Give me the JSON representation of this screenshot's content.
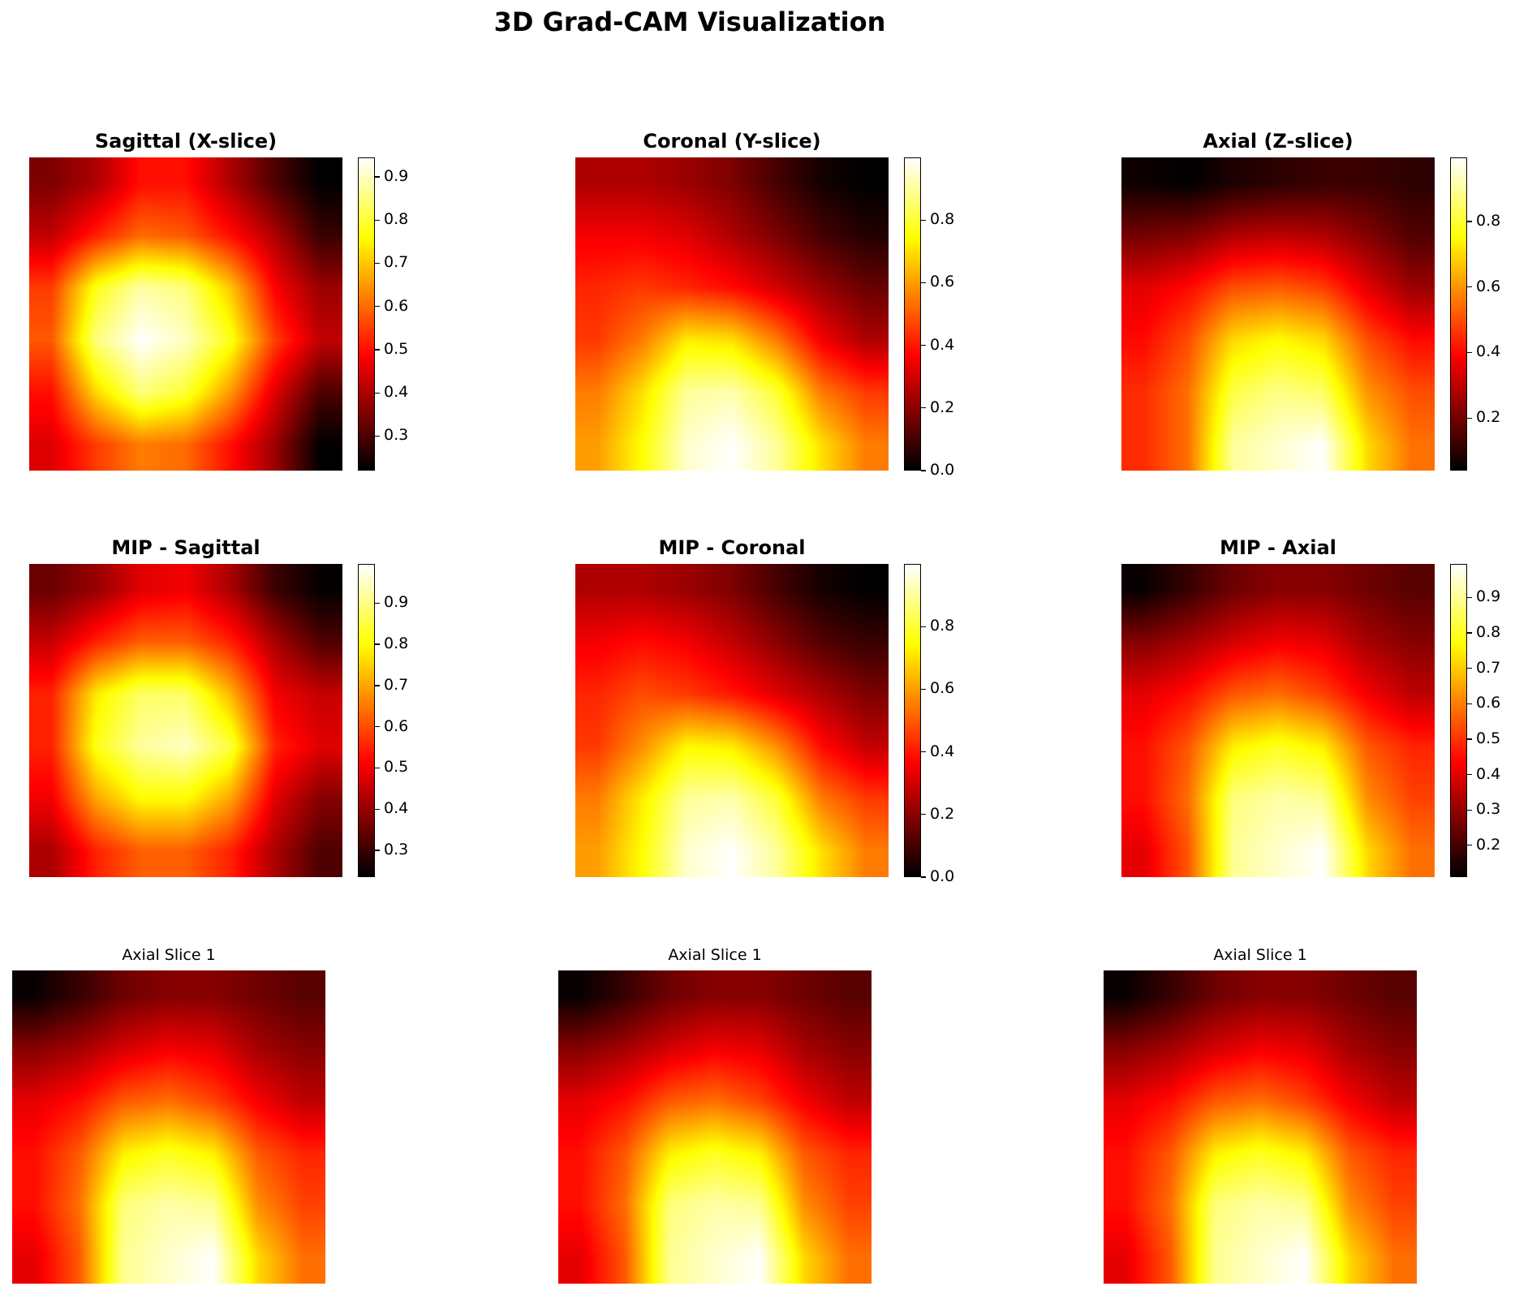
{
  "figure": {
    "title": "3D Grad-CAM Visualization",
    "colormap": "hot"
  },
  "chart_data": [
    {
      "type": "heatmap",
      "title": "Sagittal (X-slice)",
      "title_weight": "bold",
      "colorbar": true,
      "vmin": 0.22,
      "vmax": 0.945,
      "ticks": [
        0.3,
        0.4,
        0.5,
        0.6,
        0.7,
        0.8,
        0.9
      ],
      "values": [
        [
          0.35,
          0.4,
          0.5,
          0.5,
          0.4,
          0.3,
          0.22
        ],
        [
          0.42,
          0.52,
          0.6,
          0.58,
          0.5,
          0.4,
          0.28
        ],
        [
          0.55,
          0.78,
          0.88,
          0.85,
          0.7,
          0.48,
          0.38
        ],
        [
          0.58,
          0.85,
          0.945,
          0.9,
          0.78,
          0.55,
          0.42
        ],
        [
          0.5,
          0.72,
          0.85,
          0.8,
          0.65,
          0.45,
          0.3
        ],
        [
          0.45,
          0.55,
          0.62,
          0.6,
          0.5,
          0.38,
          0.22
        ]
      ]
    },
    {
      "type": "heatmap",
      "title": "Coronal (Y-slice)",
      "title_weight": "bold",
      "colorbar": true,
      "vmin": 0.0,
      "vmax": 1.0,
      "ticks": [
        0.0,
        0.2,
        0.4,
        0.6,
        0.8
      ],
      "values": [
        [
          0.25,
          0.25,
          0.22,
          0.18,
          0.1,
          0.03,
          0.0
        ],
        [
          0.35,
          0.35,
          0.32,
          0.25,
          0.18,
          0.1,
          0.05
        ],
        [
          0.42,
          0.45,
          0.42,
          0.38,
          0.3,
          0.22,
          0.15
        ],
        [
          0.45,
          0.55,
          0.72,
          0.7,
          0.55,
          0.35,
          0.25
        ],
        [
          0.55,
          0.7,
          0.9,
          0.92,
          0.8,
          0.55,
          0.45
        ],
        [
          0.6,
          0.75,
          0.95,
          1.0,
          0.9,
          0.7,
          0.55
        ]
      ]
    },
    {
      "type": "heatmap",
      "title": "Axial (Z-slice)",
      "title_weight": "bold",
      "colorbar": true,
      "vmin": 0.04,
      "vmax": 0.995,
      "ticks": [
        0.2,
        0.4,
        0.6,
        0.8
      ],
      "values": [
        [
          0.06,
          0.04,
          0.08,
          0.1,
          0.12,
          0.12,
          0.1
        ],
        [
          0.2,
          0.22,
          0.28,
          0.3,
          0.28,
          0.22,
          0.15
        ],
        [
          0.35,
          0.4,
          0.5,
          0.52,
          0.48,
          0.35,
          0.25
        ],
        [
          0.4,
          0.5,
          0.7,
          0.75,
          0.7,
          0.5,
          0.4
        ],
        [
          0.45,
          0.55,
          0.82,
          0.88,
          0.85,
          0.6,
          0.5
        ],
        [
          0.45,
          0.55,
          0.9,
          0.95,
          0.995,
          0.7,
          0.55
        ]
      ]
    },
    {
      "type": "heatmap",
      "title": "MIP - Sagittal",
      "title_weight": "bold",
      "colorbar": true,
      "vmin": 0.235,
      "vmax": 0.995,
      "ticks": [
        0.3,
        0.4,
        0.5,
        0.6,
        0.7,
        0.8,
        0.9
      ],
      "values": [
        [
          0.35,
          0.4,
          0.48,
          0.5,
          0.42,
          0.3,
          0.24
        ],
        [
          0.45,
          0.55,
          0.62,
          0.62,
          0.55,
          0.42,
          0.32
        ],
        [
          0.55,
          0.78,
          0.88,
          0.88,
          0.72,
          0.5,
          0.45
        ],
        [
          0.55,
          0.82,
          0.92,
          0.95,
          0.85,
          0.55,
          0.48
        ],
        [
          0.5,
          0.7,
          0.8,
          0.8,
          0.7,
          0.48,
          0.38
        ],
        [
          0.42,
          0.55,
          0.62,
          0.62,
          0.55,
          0.42,
          0.32
        ]
      ]
    },
    {
      "type": "heatmap",
      "title": "MIP - Coronal",
      "title_weight": "bold",
      "colorbar": true,
      "vmin": 0.0,
      "vmax": 1.0,
      "ticks": [
        0.0,
        0.2,
        0.4,
        0.6,
        0.8
      ],
      "values": [
        [
          0.25,
          0.25,
          0.22,
          0.18,
          0.1,
          0.03,
          0.0
        ],
        [
          0.35,
          0.38,
          0.35,
          0.28,
          0.2,
          0.12,
          0.08
        ],
        [
          0.42,
          0.48,
          0.45,
          0.4,
          0.32,
          0.25,
          0.18
        ],
        [
          0.45,
          0.58,
          0.74,
          0.72,
          0.58,
          0.38,
          0.28
        ],
        [
          0.55,
          0.72,
          0.9,
          0.92,
          0.8,
          0.55,
          0.45
        ],
        [
          0.6,
          0.75,
          0.95,
          1.0,
          0.9,
          0.7,
          0.55
        ]
      ]
    },
    {
      "type": "heatmap",
      "title": "MIP - Axial",
      "title_weight": "bold",
      "colorbar": true,
      "vmin": 0.11,
      "vmax": 0.995,
      "ticks": [
        0.2,
        0.3,
        0.4,
        0.5,
        0.6,
        0.7,
        0.8,
        0.9
      ],
      "values": [
        [
          0.12,
          0.18,
          0.25,
          0.28,
          0.28,
          0.25,
          0.22
        ],
        [
          0.28,
          0.32,
          0.38,
          0.42,
          0.4,
          0.32,
          0.28
        ],
        [
          0.4,
          0.45,
          0.55,
          0.58,
          0.52,
          0.42,
          0.35
        ],
        [
          0.45,
          0.55,
          0.75,
          0.8,
          0.75,
          0.55,
          0.48
        ],
        [
          0.45,
          0.58,
          0.88,
          0.92,
          0.9,
          0.62,
          0.52
        ],
        [
          0.4,
          0.55,
          0.9,
          0.95,
          0.995,
          0.72,
          0.58
        ]
      ]
    },
    {
      "type": "heatmap",
      "title": "Axial Slice 1",
      "title_weight": "normal",
      "colorbar": false,
      "vmin": 0.11,
      "vmax": 0.995,
      "values": [
        [
          0.12,
          0.18,
          0.25,
          0.28,
          0.28,
          0.25,
          0.22
        ],
        [
          0.28,
          0.32,
          0.38,
          0.42,
          0.4,
          0.32,
          0.28
        ],
        [
          0.4,
          0.45,
          0.55,
          0.58,
          0.52,
          0.42,
          0.35
        ],
        [
          0.45,
          0.55,
          0.75,
          0.8,
          0.75,
          0.55,
          0.48
        ],
        [
          0.45,
          0.58,
          0.88,
          0.92,
          0.9,
          0.62,
          0.52
        ],
        [
          0.4,
          0.55,
          0.9,
          0.95,
          0.995,
          0.72,
          0.58
        ]
      ]
    },
    {
      "type": "heatmap",
      "title": "Axial Slice 1",
      "title_weight": "normal",
      "colorbar": false,
      "vmin": 0.11,
      "vmax": 0.995,
      "values": [
        [
          0.12,
          0.18,
          0.25,
          0.28,
          0.28,
          0.25,
          0.22
        ],
        [
          0.28,
          0.32,
          0.38,
          0.42,
          0.4,
          0.32,
          0.28
        ],
        [
          0.4,
          0.45,
          0.55,
          0.58,
          0.52,
          0.42,
          0.35
        ],
        [
          0.45,
          0.55,
          0.75,
          0.8,
          0.75,
          0.55,
          0.48
        ],
        [
          0.45,
          0.58,
          0.88,
          0.92,
          0.9,
          0.62,
          0.52
        ],
        [
          0.4,
          0.55,
          0.9,
          0.95,
          0.995,
          0.72,
          0.58
        ]
      ]
    },
    {
      "type": "heatmap",
      "title": "Axial Slice 1",
      "title_weight": "normal",
      "colorbar": false,
      "vmin": 0.11,
      "vmax": 0.995,
      "values": [
        [
          0.12,
          0.18,
          0.25,
          0.28,
          0.28,
          0.25,
          0.22
        ],
        [
          0.28,
          0.32,
          0.38,
          0.42,
          0.4,
          0.32,
          0.28
        ],
        [
          0.4,
          0.45,
          0.55,
          0.58,
          0.52,
          0.42,
          0.35
        ],
        [
          0.45,
          0.55,
          0.75,
          0.8,
          0.75,
          0.55,
          0.48
        ],
        [
          0.45,
          0.58,
          0.88,
          0.92,
          0.9,
          0.62,
          0.52
        ],
        [
          0.4,
          0.55,
          0.9,
          0.95,
          0.995,
          0.72,
          0.58
        ]
      ]
    }
  ]
}
